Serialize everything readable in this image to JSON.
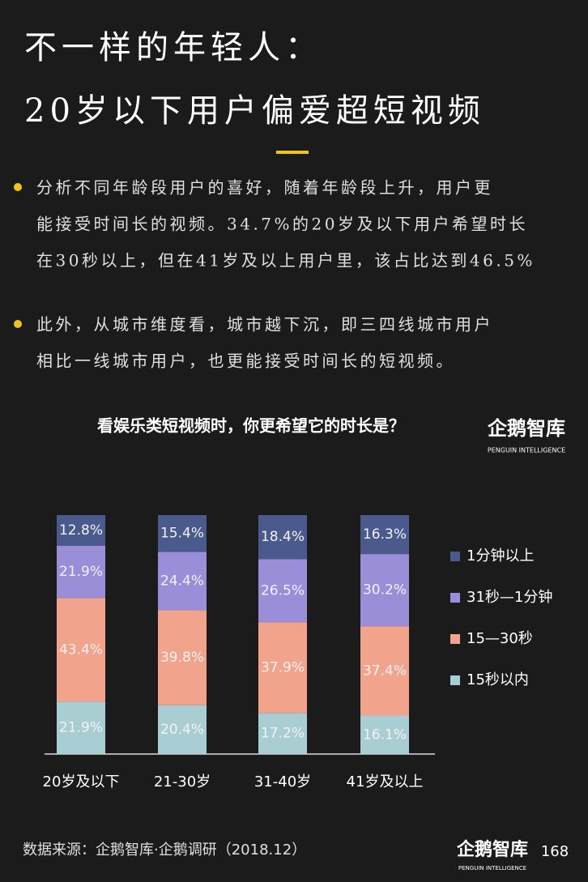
{
  "header": {
    "title_line1": "不一样的年轻人：",
    "title_line2": "20岁以下用户偏爱超短视频"
  },
  "bullets": [
    [
      "分析不同年龄段用户的喜好，随着年龄段上升，用户更",
      "能接受时间长的视频。34.7%的20岁及以下用户希望时长",
      "在30秒以上，但在41岁及以上用户里，该占比达到46.5%"
    ],
    [
      "此外，从城市维度看，城市越下沉，即三四线城市用户",
      "相比一线城市用户，也更能接受时间长的短视频。"
    ]
  ],
  "chart_data": {
    "type": "stacked_bar",
    "title": "看娱乐类短视频时，你更希望它的时长是？",
    "categories": [
      "20岁及以下",
      "21-30岁",
      "31-40岁",
      "41岁及以上"
    ],
    "series": [
      {
        "name": "15秒以内",
        "color": "#a8cdd2",
        "values": [
          21.9,
          20.4,
          17.2,
          16.1
        ],
        "value_labels": [
          "21.9%",
          "20.4%",
          "17.2%",
          "16.1%"
        ]
      },
      {
        "name": "15—30秒",
        "color": "#f2a38b",
        "values": [
          43.4,
          39.8,
          37.9,
          37.4
        ],
        "value_labels": [
          "43.4%",
          "39.8%",
          "37.9%",
          "37.4%"
        ]
      },
      {
        "name": "31秒—1分钟",
        "color": "#9a8ed8",
        "values": [
          21.9,
          24.4,
          26.5,
          30.2
        ],
        "value_labels": [
          "21.9%",
          "24.4%",
          "26.5%",
          "30.2%"
        ]
      },
      {
        "name": "1分钟以上",
        "color": "#4b5a8c",
        "values": [
          12.8,
          15.4,
          18.4,
          16.3
        ],
        "value_labels": [
          "12.8%",
          "15.4%",
          "18.4%",
          "16.3%"
        ]
      }
    ]
  },
  "brand": {
    "name": "企鹅智库",
    "tagline": "PENGUIN INTELLIGENCE"
  },
  "source": "数据来源：企鹅智库·企鹅调研（2018.12）",
  "page_number": "168"
}
